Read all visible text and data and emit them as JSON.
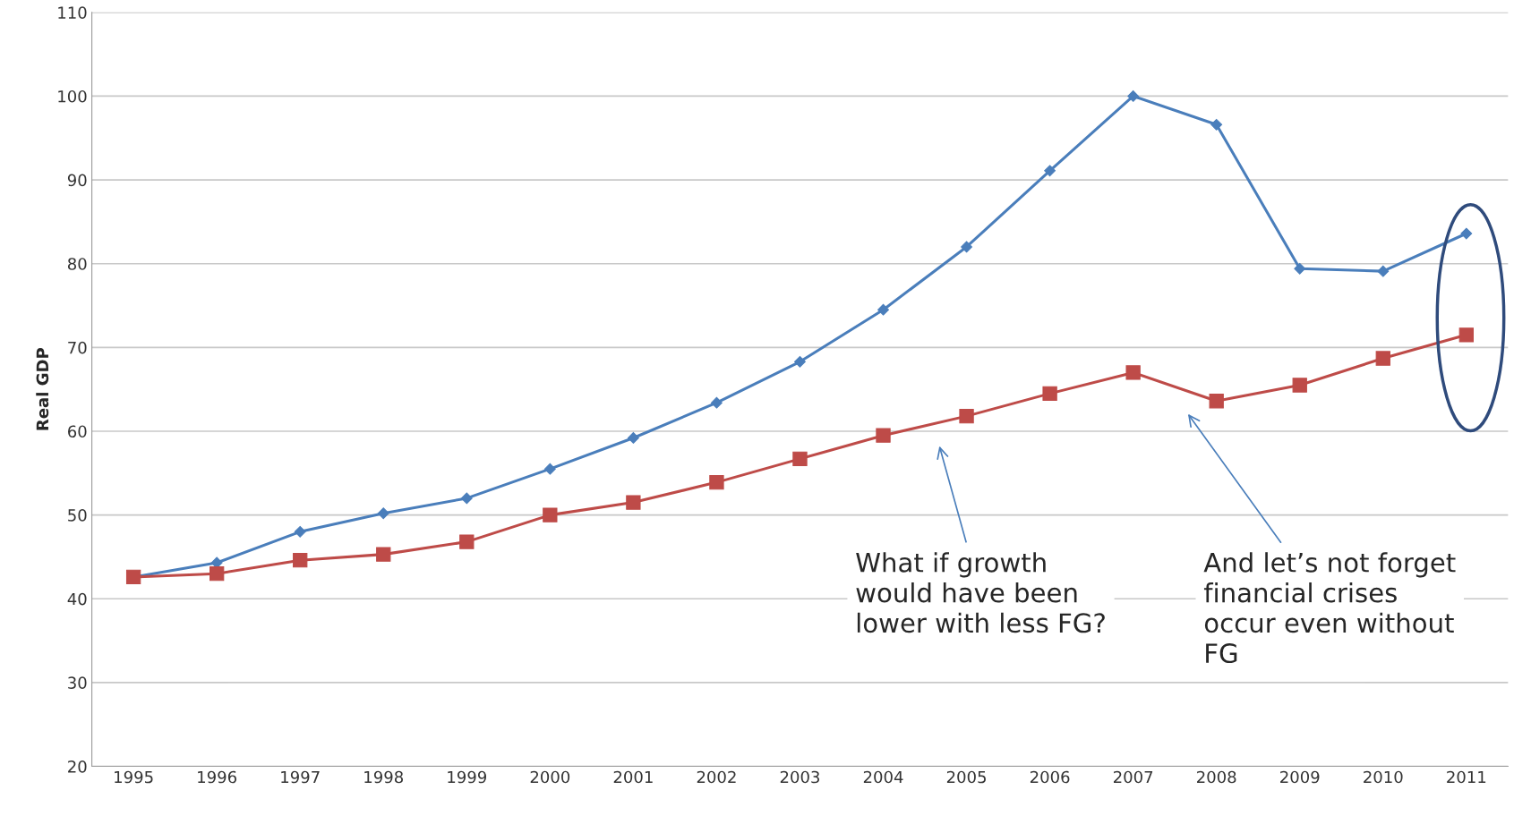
{
  "chart_data": {
    "type": "line",
    "ylabel": "Real GDP",
    "x": [
      1995,
      1996,
      1997,
      1998,
      1999,
      2000,
      2001,
      2002,
      2003,
      2004,
      2005,
      2006,
      2007,
      2008,
      2009,
      2010,
      2011
    ],
    "xlim": [
      1994.5,
      2011.5
    ],
    "xticks": [
      1995,
      1996,
      1997,
      1998,
      1999,
      2000,
      2001,
      2002,
      2003,
      2004,
      2005,
      2006,
      2007,
      2008,
      2009,
      2010,
      2011
    ],
    "ylim": [
      20,
      110
    ],
    "yticks": [
      20,
      30,
      40,
      50,
      60,
      70,
      80,
      90,
      100,
      110
    ],
    "grid": "y",
    "series": [
      {
        "color": "#4a7ebb",
        "marker": "diamond",
        "values": [
          42.6,
          44.3,
          48,
          50.2,
          52,
          55.5,
          59.2,
          63.4,
          68.3,
          74.5,
          82,
          91.1,
          100,
          96.6,
          79.4,
          79.1,
          83.6
        ]
      },
      {
        "color": "#be4b48",
        "marker": "square",
        "values": [
          42.6,
          43,
          44.6,
          45.3,
          46.8,
          50,
          51.5,
          53.9,
          56.7,
          59.5,
          61.8,
          64.5,
          67,
          63.6,
          65.5,
          68.7,
          71.5
        ]
      }
    ],
    "annotations": [
      "What if growth\nwould have been\nlower with less FG?",
      "And let’s not forget\nfinancial crises\noccur even without\nFG"
    ]
  }
}
